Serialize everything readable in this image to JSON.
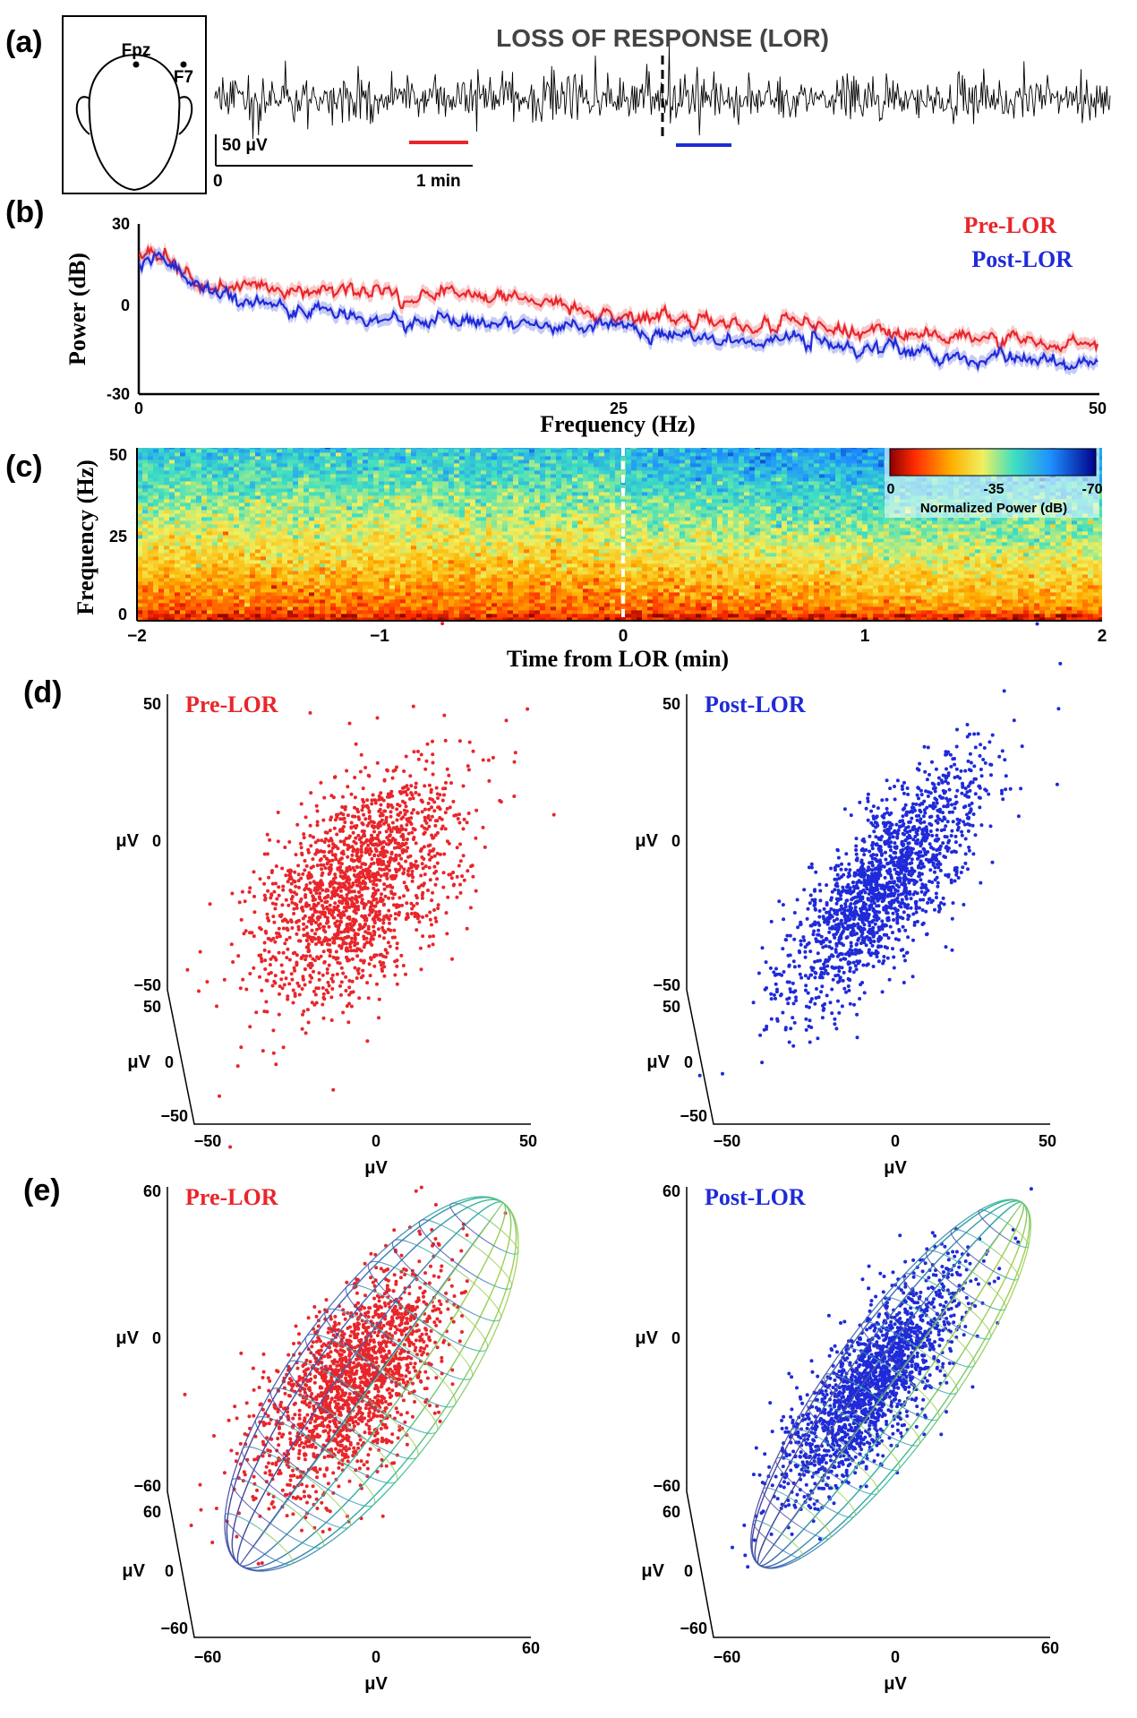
{
  "figure": {
    "panels": [
      "(a)",
      "(b)",
      "(c)",
      "(d)",
      "(e)"
    ]
  },
  "chart_data": [
    {
      "panel": "(a)",
      "type": "line",
      "title": "LOSS OF RESPONSE (LOR)",
      "electrodes": [
        "Fpz",
        "F7"
      ],
      "scale_bar": {
        "amplitude": "50 μV",
        "time_start": "0",
        "time_end": "1 min"
      },
      "lor_marker": "dashed vertical line",
      "pre_window_color": "#e8262b",
      "post_window_color": "#1f2bd8",
      "trace_color": "#000000"
    },
    {
      "panel": "(b)",
      "type": "line",
      "xlabel": "Frequency (Hz)",
      "ylabel": "Power (dB)",
      "xlim": [
        0,
        50
      ],
      "ylim": [
        -30,
        30
      ],
      "x_ticks": [
        "0",
        "25",
        "50"
      ],
      "y_ticks": [
        "30",
        "0",
        "-30"
      ],
      "legend_position": "top-right",
      "series": [
        {
          "name": "Pre-LOR",
          "color": "#e8262b",
          "x": [
            0,
            1,
            2,
            3,
            5,
            8,
            10,
            12,
            14,
            16,
            18,
            20,
            22,
            25,
            28,
            30,
            32,
            35,
            38,
            40,
            42,
            44,
            46,
            48,
            50
          ],
          "values": [
            19,
            20,
            17,
            12,
            9,
            8,
            7,
            6,
            6,
            6,
            5,
            4,
            2,
            0,
            -3,
            -4,
            -6,
            -6,
            -7,
            -9,
            -9,
            -10,
            -11,
            -11,
            -12
          ]
        },
        {
          "name": "Post-LOR",
          "color": "#1f2bd8",
          "x": [
            0,
            1,
            2,
            3,
            5,
            8,
            10,
            12,
            14,
            16,
            18,
            20,
            22,
            25,
            28,
            30,
            32,
            35,
            38,
            40,
            42,
            44,
            46,
            48,
            50
          ],
          "values": [
            16,
            21,
            16,
            10,
            4,
            1,
            0,
            -2,
            -3,
            -4,
            -4,
            -5,
            -6,
            -6,
            -8,
            -9,
            -11,
            -12,
            -13,
            -14,
            -15,
            -16,
            -16,
            -17,
            -18
          ]
        }
      ]
    },
    {
      "panel": "(c)",
      "type": "heatmap",
      "xlabel": "Time from LOR (min)",
      "ylabel": "Frequency (Hz)",
      "xlim": [
        -2,
        2
      ],
      "ylim": [
        0,
        50
      ],
      "x_ticks": [
        "−2",
        "−1",
        "0",
        "1",
        "2"
      ],
      "y_ticks": [
        "50",
        "25",
        "0"
      ],
      "colorbar": {
        "label": "Normalized Power (dB)",
        "ticks": [
          "0",
          "-35",
          "-70"
        ],
        "range": [
          0,
          -70
        ]
      }
    },
    {
      "panel": "(d)",
      "type": "scatter",
      "subplots": [
        {
          "title": "Pre-LOR",
          "color": "#e8262b",
          "axis_label": "μV",
          "x_ticks": [
            "−50",
            "0",
            "50"
          ],
          "y_ticks": [
            "50",
            "0",
            "−50"
          ],
          "z_ticks": [
            "50",
            "0",
            "−50"
          ],
          "xlim": [
            -50,
            50
          ],
          "ylim": [
            -50,
            50
          ],
          "zlim": [
            -50,
            50
          ]
        },
        {
          "title": "Post-LOR",
          "color": "#1f2bd8",
          "axis_label": "μV",
          "x_ticks": [
            "−50",
            "0",
            "50"
          ],
          "y_ticks": [
            "50",
            "0",
            "−50"
          ],
          "z_ticks": [
            "50",
            "0",
            "−50"
          ],
          "xlim": [
            -50,
            50
          ],
          "ylim": [
            -50,
            50
          ],
          "zlim": [
            -50,
            50
          ]
        }
      ]
    },
    {
      "panel": "(e)",
      "type": "scatter",
      "subplots": [
        {
          "title": "Pre-LOR",
          "color": "#e8262b",
          "axis_label": "μV",
          "x_ticks": [
            "−60",
            "0",
            "60"
          ],
          "y_ticks": [
            "60",
            "0",
            "−60"
          ],
          "z_ticks": [
            "60",
            "0",
            "−60"
          ],
          "xlim": [
            -60,
            60
          ],
          "ylim": [
            -60,
            60
          ],
          "zlim": [
            -60,
            60
          ],
          "overlay": "fitted ellipsoid mesh"
        },
        {
          "title": "Post-LOR",
          "color": "#1f2bd8",
          "axis_label": "μV",
          "x_ticks": [
            "−60",
            "0",
            "60"
          ],
          "y_ticks": [
            "60",
            "0",
            "−60"
          ],
          "z_ticks": [
            "60",
            "0",
            "−60"
          ],
          "xlim": [
            -60,
            60
          ],
          "ylim": [
            -60,
            60
          ],
          "zlim": [
            -60,
            60
          ],
          "overlay": "fitted ellipsoid mesh"
        }
      ]
    }
  ]
}
